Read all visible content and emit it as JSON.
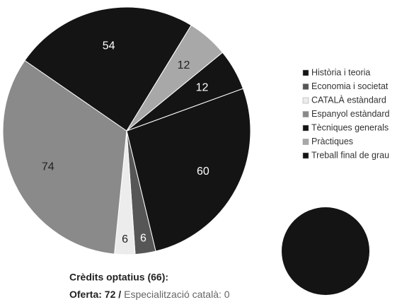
{
  "chart_data": {
    "type": "pie",
    "categories": [
      "Història i teoria",
      "Economia i societat",
      "CATALÀ estàndard",
      "Espanyol estàndard",
      "Tècniques generals",
      "Pràctiques",
      "Treball final de grau"
    ],
    "values": [
      60,
      6,
      6,
      74,
      54,
      12,
      12
    ],
    "colors": [
      "#141414",
      "#565656",
      "#ececec",
      "#8a8a8a",
      "#141414",
      "#a8a8a8",
      "#141414"
    ],
    "legend": "right"
  },
  "notes": {
    "heading": "Crèdits optatius (66):",
    "offer": "Oferta: 72 /",
    "specialization": "Especialització català: 0"
  }
}
